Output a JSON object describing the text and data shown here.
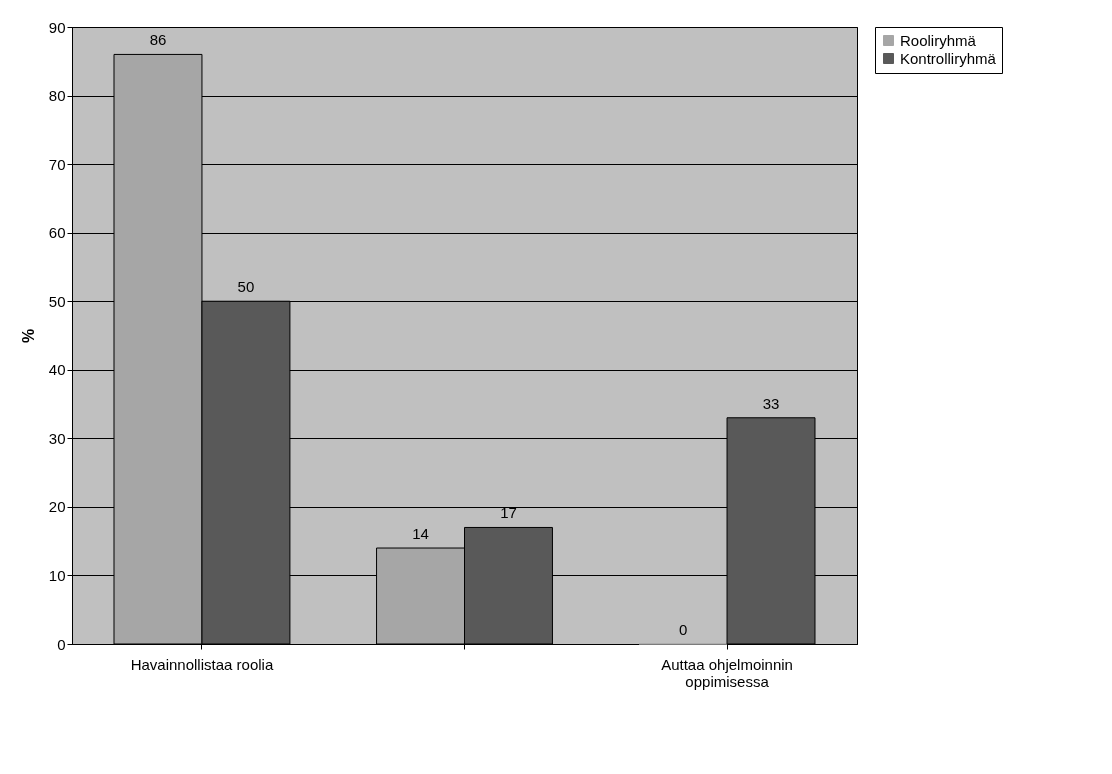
{
  "chart_data": {
    "type": "bar",
    "ylabel": "%",
    "categories": [
      "Havainnollistaa roolia",
      null,
      "Auttaa ohjelmoinnin\noppimisessa"
    ],
    "series": [
      {
        "name": "Rooliryhmä",
        "color": "#a6a6a6",
        "values": [
          86,
          14,
          0
        ]
      },
      {
        "name": "Kontrolliryhmä",
        "color": "#595959",
        "values": [
          50,
          17,
          33
        ]
      }
    ],
    "ylim": [
      0,
      90
    ],
    "yticks": [
      0,
      10,
      20,
      30,
      40,
      50,
      60,
      70,
      80,
      90
    ],
    "grid": "y",
    "legend": "right",
    "data_labels": true
  }
}
